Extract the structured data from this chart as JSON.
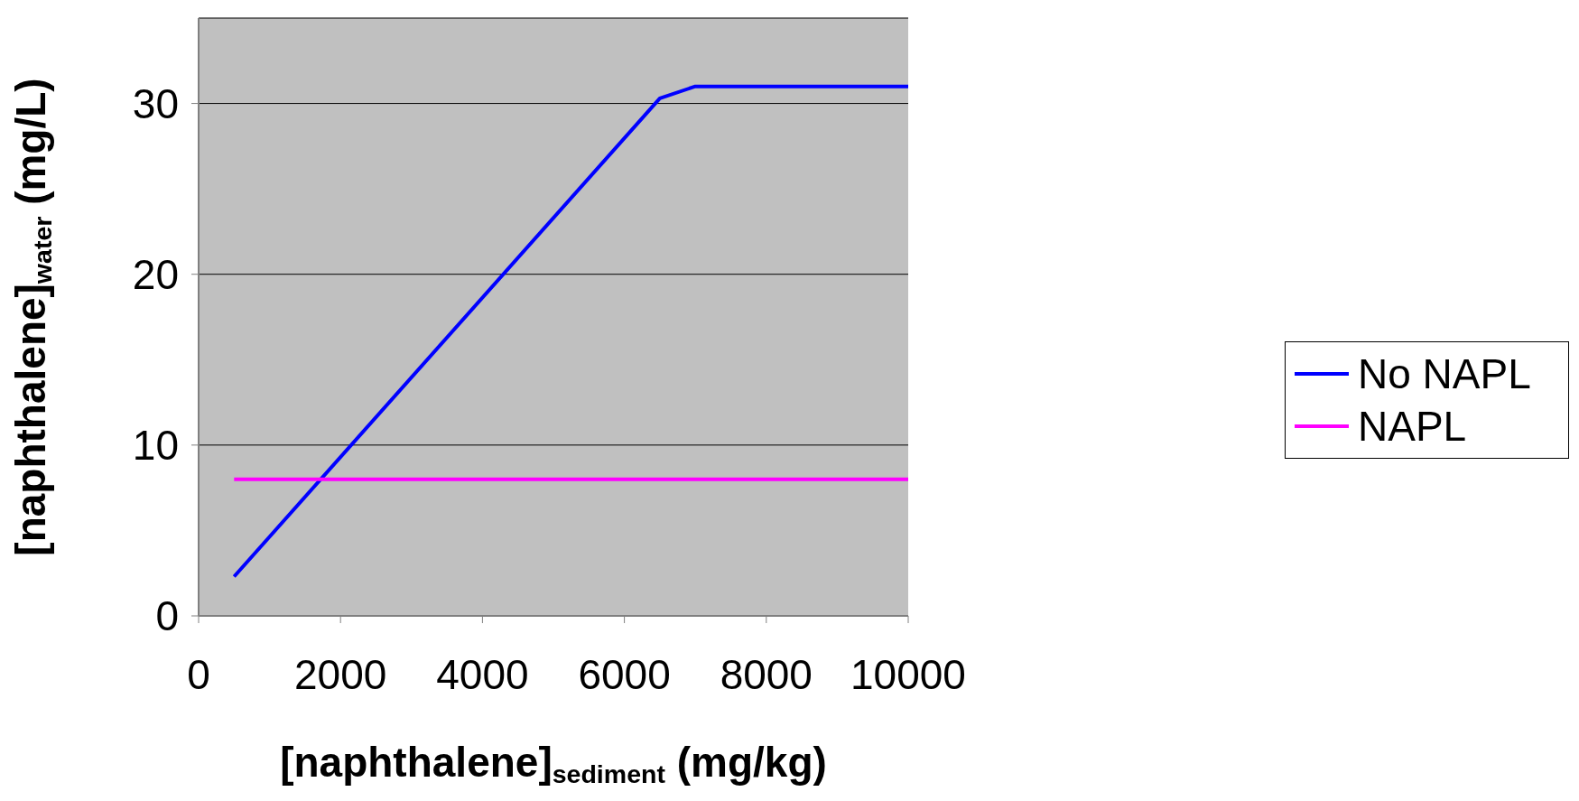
{
  "chart_data": {
    "type": "line",
    "xlabel": "[naphthalene]$_{sediment}$ (mg/kg)",
    "ylabel": "[naphthalene]$_{water}$ (mg/L)",
    "xlim": [
      0,
      10000
    ],
    "xticks": [
      0,
      2000,
      4000,
      6000,
      8000,
      10000
    ],
    "ylim": [
      0,
      35
    ],
    "yticks": [
      0,
      10,
      20,
      30
    ],
    "grid": "y",
    "legend": "right",
    "marker": "none",
    "line_style": "solid",
    "series": [
      {
        "name": "No NAPL",
        "color": "#0000ff",
        "x": [
          500,
          6500,
          7000,
          10000
        ],
        "values": [
          2.3,
          30.3,
          31,
          31
        ]
      },
      {
        "name": "NAPL",
        "color": "#ff00ff",
        "x": [
          500,
          10000
        ],
        "values": [
          8,
          8
        ]
      }
    ]
  }
}
